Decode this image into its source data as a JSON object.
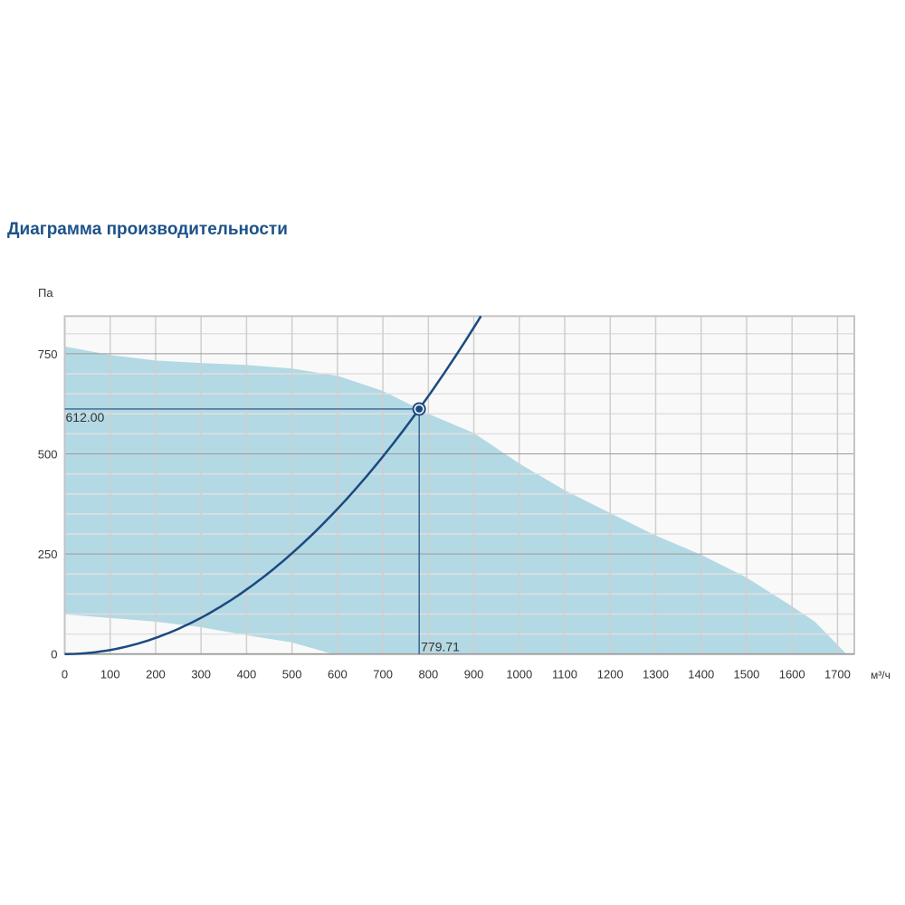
{
  "title": "Диаграмма производительности",
  "chart_data": {
    "type": "area",
    "title": "Диаграмма производительности",
    "ylabel": "Па",
    "xlabel": "м³/ч",
    "xlim": [
      0,
      1737
    ],
    "ylim": [
      0,
      844
    ],
    "x_ticks": [
      0,
      100,
      200,
      300,
      400,
      500,
      600,
      700,
      800,
      900,
      1000,
      1100,
      1200,
      1300,
      1400,
      1500,
      1600,
      1700
    ],
    "y_ticks": [
      0,
      250,
      500,
      750
    ],
    "grid": true,
    "colors": {
      "envelope": "#b3d9e4",
      "curve": "#1b4a80",
      "background": "#f9f9f9",
      "title": "#1d5289"
    },
    "envelope_upper": [
      [
        0,
        768
      ],
      [
        100,
        747
      ],
      [
        200,
        733
      ],
      [
        300,
        727
      ],
      [
        400,
        722
      ],
      [
        500,
        713
      ],
      [
        600,
        695
      ],
      [
        700,
        657
      ],
      [
        780,
        612
      ],
      [
        800,
        600
      ],
      [
        900,
        552
      ],
      [
        1000,
        476
      ],
      [
        1100,
        409
      ],
      [
        1200,
        352
      ],
      [
        1300,
        296
      ],
      [
        1400,
        248
      ],
      [
        1500,
        191
      ],
      [
        1600,
        119
      ],
      [
        1650,
        81
      ],
      [
        1720,
        0
      ]
    ],
    "envelope_lower": [
      [
        0,
        99
      ],
      [
        100,
        90
      ],
      [
        200,
        81
      ],
      [
        300,
        67
      ],
      [
        400,
        47
      ],
      [
        500,
        29
      ],
      [
        590,
        0
      ],
      [
        1720,
        0
      ]
    ],
    "system_curve": {
      "coefficient_pa": 612.0,
      "reference_flow": 779.71,
      "exponent": 2
    },
    "operating_point": {
      "x": 779.71,
      "y": 612.0,
      "x_label": "779.71",
      "y_label": "612.00"
    }
  }
}
